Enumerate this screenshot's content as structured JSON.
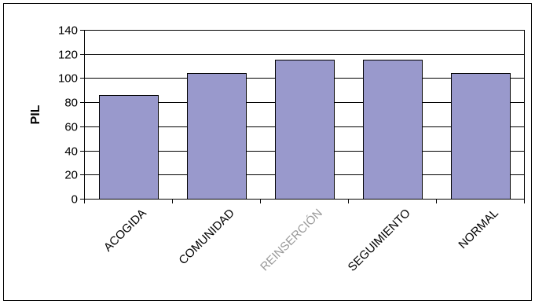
{
  "chart_data": {
    "type": "bar",
    "title": "",
    "xlabel": "",
    "ylabel": "PIL",
    "categories": [
      "ACOGIDA",
      "COMUNIDAD",
      "REINSERCIÓN",
      "SEGUIMIENTO",
      "NORMAL"
    ],
    "values": [
      86,
      104,
      115,
      115,
      104
    ],
    "ylim": [
      0,
      140
    ],
    "yticks": [
      0,
      20,
      40,
      60,
      80,
      100,
      120,
      140
    ],
    "ytick_labels": [
      "0",
      "20",
      "40",
      "60",
      "80",
      "100",
      "120",
      "140"
    ],
    "grid": true,
    "legend": "none",
    "colors": {
      "bar_fill": "#9999cc",
      "bar_stroke": "#000000",
      "grid": "#000000",
      "faded_label": "#9a9a9a"
    }
  }
}
